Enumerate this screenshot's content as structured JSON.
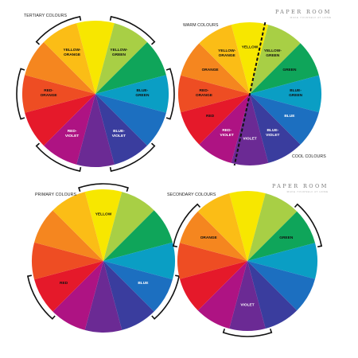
{
  "brand": {
    "name": "PAPER ROOM",
    "tagline": "MAKE YOURSELF AT HOME"
  },
  "colors": [
    {
      "key": "yellow",
      "hex": "#f7e700"
    },
    {
      "key": "yellow_green",
      "hex": "#a8cf45"
    },
    {
      "key": "green",
      "hex": "#0fa55a"
    },
    {
      "key": "blue_green",
      "hex": "#0a9ec4"
    },
    {
      "key": "blue",
      "hex": "#1c6fc0"
    },
    {
      "key": "blue_violet",
      "hex": "#3a3d9e"
    },
    {
      "key": "violet",
      "hex": "#6b2a94"
    },
    {
      "key": "red_violet",
      "hex": "#ae1383"
    },
    {
      "key": "red",
      "hex": "#e5192a"
    },
    {
      "key": "red_orange",
      "hex": "#ee4d23"
    },
    {
      "key": "orange",
      "hex": "#f5861f"
    },
    {
      "key": "yellow_orange",
      "hex": "#fbbd16"
    }
  ],
  "wheels": [
    {
      "id": "tertiary",
      "title": "TERTIARY COLOURS",
      "labels": [
        {
          "slot": 11,
          "lines": [
            "YELLOW-",
            "ORANGE"
          ]
        },
        {
          "slot": 1,
          "lines": [
            "YELLOW-",
            "GREEN"
          ]
        },
        {
          "slot": 9,
          "lines": [
            "RED-",
            "ORANGE"
          ]
        },
        {
          "slot": 3,
          "lines": [
            "BLUE-",
            "GREEN"
          ]
        },
        {
          "slot": 7,
          "lines": [
            "RED-",
            "VIOLET"
          ],
          "light": true
        },
        {
          "slot": 5,
          "lines": [
            "BLUE-",
            "VIOLET"
          ],
          "light": true
        }
      ],
      "brackets": [
        11,
        1,
        9,
        3,
        7,
        5
      ]
    },
    {
      "id": "warm-cool",
      "title": "WARM COLOURS",
      "subtitle": "COOL COLOURS",
      "labels": [
        {
          "slot": 0,
          "lines": [
            "YELLOW"
          ]
        },
        {
          "slot": 1,
          "lines": [
            "YELLOW-",
            "GREEN"
          ]
        },
        {
          "slot": 11,
          "lines": [
            "YELLOW-",
            "ORANGE"
          ]
        },
        {
          "slot": 2,
          "lines": [
            "GREEN"
          ]
        },
        {
          "slot": 10,
          "lines": [
            "ORANGE"
          ]
        },
        {
          "slot": 3,
          "lines": [
            "BLUE-",
            "GREEN"
          ]
        },
        {
          "slot": 9,
          "lines": [
            "RED-",
            "ORANGE"
          ]
        },
        {
          "slot": 4,
          "lines": [
            "BLUE"
          ],
          "light": true
        },
        {
          "slot": 8,
          "lines": [
            "RED"
          ]
        },
        {
          "slot": 5,
          "lines": [
            "BLUE-",
            "VIOLET"
          ],
          "light": true
        },
        {
          "slot": 7,
          "lines": [
            "RED-",
            "VIOLET"
          ],
          "light": true
        },
        {
          "slot": 6,
          "lines": [
            "VIOLET"
          ],
          "light": true
        }
      ],
      "divider": true
    },
    {
      "id": "primary",
      "title": "PRIMARY COLOURS",
      "labels": [
        {
          "slot": 0,
          "lines": [
            "YELLOW"
          ]
        },
        {
          "slot": 8,
          "lines": [
            "RED"
          ]
        },
        {
          "slot": 4,
          "lines": [
            "BLUE"
          ],
          "light": true
        }
      ],
      "brackets": [
        0,
        8,
        4
      ]
    },
    {
      "id": "secondary",
      "title": "SECONDARY COLOURS",
      "labels": [
        {
          "slot": 10,
          "lines": [
            "ORANGE"
          ]
        },
        {
          "slot": 2,
          "lines": [
            "GREEN"
          ]
        },
        {
          "slot": 6,
          "lines": [
            "VIOLET"
          ],
          "light": true
        }
      ],
      "brackets": [
        10,
        2,
        6
      ]
    }
  ]
}
